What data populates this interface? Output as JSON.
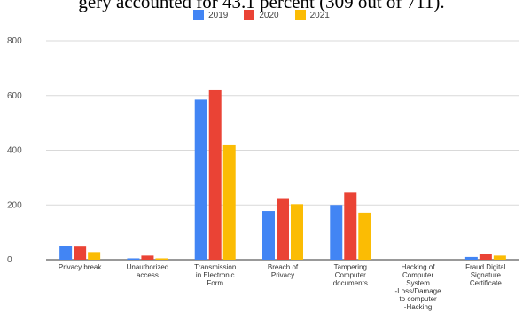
{
  "top_text": "gery accounted for 43.1 percent (309 out of 711).",
  "chart_data": {
    "type": "bar",
    "title": "",
    "xlabel": "",
    "ylabel": "",
    "ylim": [
      0,
      800
    ],
    "yticks": [
      0,
      200,
      400,
      600,
      800
    ],
    "grid": true,
    "legend_position": "top",
    "categories": [
      [
        "Privacy break"
      ],
      [
        "Unauthorized",
        "access"
      ],
      [
        "Transmission",
        "in Electronic",
        "Form"
      ],
      [
        "Breach of",
        "Privacy"
      ],
      [
        "Tampering",
        "Computer",
        "documents"
      ],
      [
        "Hacking of",
        "Computer",
        "System",
        "-Loss/Damage",
        "to computer",
        "-Hacking"
      ],
      [
        "Fraud Digital",
        "Signature",
        "Certificate"
      ]
    ],
    "series": [
      {
        "name": "2019",
        "color": "#4285f4",
        "values": [
          50,
          5,
          585,
          178,
          200,
          0,
          10
        ]
      },
      {
        "name": "2020",
        "color": "#ea4335",
        "values": [
          48,
          15,
          622,
          225,
          245,
          0,
          20
        ]
      },
      {
        "name": "2021",
        "color": "#fbbc04",
        "values": [
          28,
          5,
          418,
          203,
          172,
          0,
          15
        ]
      }
    ]
  }
}
